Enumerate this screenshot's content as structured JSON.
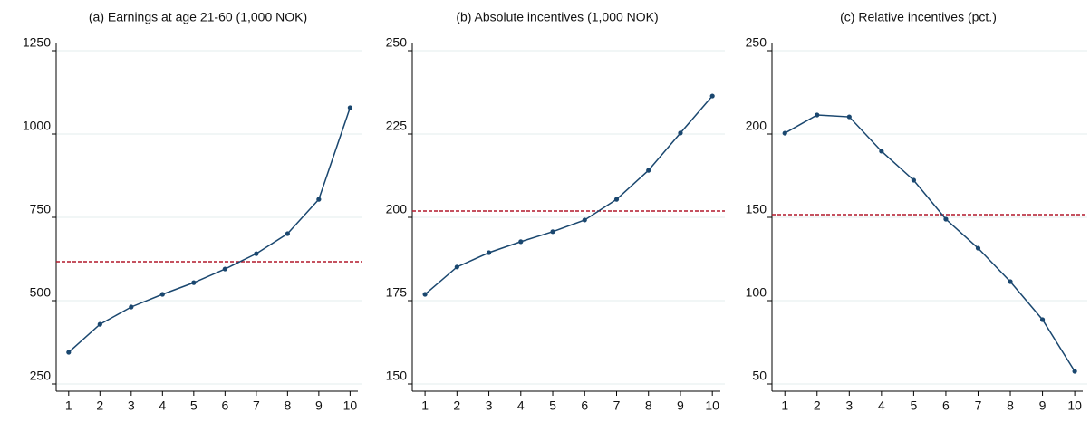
{
  "chart_data": [
    {
      "type": "line",
      "title": "(a) Earnings at age 21-60 (1,000 NOK)",
      "x": [
        1,
        2,
        3,
        4,
        5,
        6,
        7,
        8,
        9,
        10
      ],
      "values": [
        345,
        429,
        481,
        519,
        554,
        595,
        641,
        701,
        804,
        1079
      ],
      "color": "#1a476f",
      "reference_line": 617,
      "reference_color": "#b2182b",
      "xlim": [
        0.6,
        10.25
      ],
      "xticks": [
        1,
        2,
        3,
        4,
        5,
        6,
        7,
        8,
        9,
        10
      ],
      "ylim": [
        250,
        1250
      ],
      "yticks": [
        250,
        500,
        750,
        1000,
        1250
      ],
      "grid": true
    },
    {
      "type": "line",
      "title": "(b) Absolute incentives (1,000 NOK)",
      "x": [
        1,
        2,
        3,
        4,
        5,
        6,
        7,
        8,
        9,
        10
      ],
      "values": [
        176.9,
        185.1,
        189.4,
        192.7,
        195.7,
        199.2,
        205.4,
        214.1,
        225.3,
        236.4
      ],
      "color": "#1a476f",
      "reference_line": 201.9,
      "reference_color": "#b2182b",
      "xlim": [
        0.6,
        10.25
      ],
      "xticks": [
        1,
        2,
        3,
        4,
        5,
        6,
        7,
        8,
        9,
        10
      ],
      "ylim": [
        150,
        250
      ],
      "yticks": [
        150,
        175,
        200,
        225,
        250
      ],
      "grid": true
    },
    {
      "type": "line",
      "title": "(c) Relative incentives (pct.)",
      "x": [
        1,
        2,
        3,
        4,
        5,
        6,
        7,
        8,
        9,
        10
      ],
      "values": [
        200.5,
        211.4,
        210.3,
        189.7,
        172.3,
        148.9,
        131.5,
        111.4,
        88.6,
        57.6
      ],
      "color": "#1a476f",
      "reference_line": 151.6,
      "reference_color": "#b2182b",
      "xlim": [
        0.6,
        10.25
      ],
      "xticks": [
        1,
        2,
        3,
        4,
        5,
        6,
        7,
        8,
        9,
        10
      ],
      "ylim": [
        50,
        250
      ],
      "yticks": [
        50,
        100,
        150,
        200,
        250
      ],
      "grid": true
    }
  ]
}
